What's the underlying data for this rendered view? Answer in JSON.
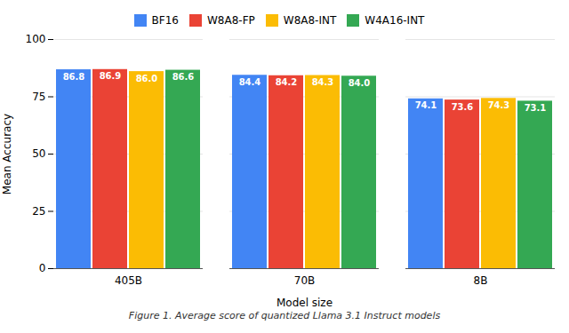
{
  "chart_data": {
    "type": "bar",
    "categories": [
      "405B",
      "70B",
      "8B"
    ],
    "series": [
      {
        "name": "BF16",
        "color": "#4285F4",
        "values": [
          86.8,
          84.4,
          74.1
        ],
        "value_labels": [
          "86.8",
          "84.4",
          "74.1"
        ]
      },
      {
        "name": "W8A8-FP",
        "color": "#EA4335",
        "values": [
          86.9,
          84.2,
          73.6
        ],
        "value_labels": [
          "86.9",
          "84.2",
          "73.6"
        ]
      },
      {
        "name": "W8A8-INT",
        "color": "#FBBC04",
        "values": [
          86.0,
          84.3,
          74.3
        ],
        "value_labels": [
          "86.0",
          "84.3",
          "74.3"
        ]
      },
      {
        "name": "W4A16-INT",
        "color": "#34A853",
        "values": [
          86.6,
          84.0,
          73.1
        ],
        "value_labels": [
          "86.6",
          "84.0",
          "73.1"
        ]
      }
    ],
    "ylabel": "Mean Accuracy",
    "xlabel": "Model size",
    "caption": "Figure 1. Average score of quantized Llama 3.1 Instruct models",
    "ylim": [
      0,
      100
    ],
    "yticks": [
      0,
      25,
      50,
      75,
      100
    ],
    "grid": true,
    "legend": "top",
    "data_labels": true
  }
}
